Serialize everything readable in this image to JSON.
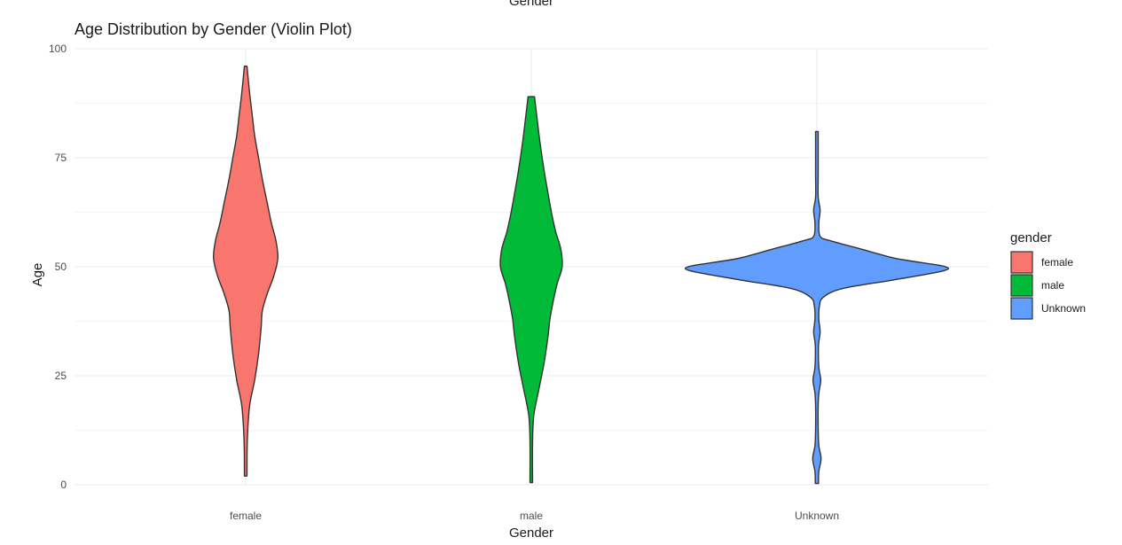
{
  "chart_data": {
    "type": "violin",
    "title": "Age Distribution by Gender (Violin Plot)",
    "xlabel": "Gender",
    "ylabel": "Age",
    "top_clipped_label": "Gender",
    "ylim": [
      0,
      100
    ],
    "yticks": [
      0,
      25,
      50,
      75,
      100
    ],
    "grid": true,
    "legend_title": "gender",
    "legend_position": "right",
    "categories": [
      "female",
      "male",
      "Unknown"
    ],
    "colors": [
      "#F8766D",
      "#00BA38",
      "#619CFF"
    ],
    "series": [
      {
        "name": "female",
        "min": 2,
        "max": 96,
        "profile": [
          [
            2,
            0.02
          ],
          [
            10,
            0.025
          ],
          [
            18,
            0.06
          ],
          [
            24,
            0.14
          ],
          [
            30,
            0.2
          ],
          [
            36,
            0.24
          ],
          [
            40,
            0.26
          ],
          [
            44,
            0.34
          ],
          [
            48,
            0.44
          ],
          [
            52,
            0.5
          ],
          [
            56,
            0.47
          ],
          [
            60,
            0.4
          ],
          [
            65,
            0.33
          ],
          [
            70,
            0.26
          ],
          [
            75,
            0.2
          ],
          [
            80,
            0.14
          ],
          [
            85,
            0.1
          ],
          [
            90,
            0.06
          ],
          [
            96,
            0.02
          ]
        ]
      },
      {
        "name": "male",
        "min": 0.5,
        "max": 89,
        "profile": [
          [
            0.5,
            0.02
          ],
          [
            10,
            0.02
          ],
          [
            16,
            0.04
          ],
          [
            22,
            0.12
          ],
          [
            28,
            0.2
          ],
          [
            34,
            0.26
          ],
          [
            38,
            0.29
          ],
          [
            42,
            0.34
          ],
          [
            46,
            0.4
          ],
          [
            50,
            0.48
          ],
          [
            54,
            0.46
          ],
          [
            58,
            0.38
          ],
          [
            62,
            0.32
          ],
          [
            66,
            0.27
          ],
          [
            72,
            0.2
          ],
          [
            78,
            0.14
          ],
          [
            84,
            0.09
          ],
          [
            89,
            0.05
          ]
        ]
      },
      {
        "name": "Unknown",
        "min": 0.3,
        "max": 81,
        "profile": [
          [
            0.3,
            0.025
          ],
          [
            3,
            0.03
          ],
          [
            6,
            0.065
          ],
          [
            9,
            0.03
          ],
          [
            13,
            0.02
          ],
          [
            18,
            0.02
          ],
          [
            21,
            0.03
          ],
          [
            24,
            0.06
          ],
          [
            27,
            0.03
          ],
          [
            32,
            0.025
          ],
          [
            35,
            0.05
          ],
          [
            38,
            0.03
          ],
          [
            41,
            0.04
          ],
          [
            43,
            0.1
          ],
          [
            45,
            0.4
          ],
          [
            47,
            1.2
          ],
          [
            49,
            1.95
          ],
          [
            50,
            2.0
          ],
          [
            51,
            1.6
          ],
          [
            52,
            1.2
          ],
          [
            54,
            0.7
          ],
          [
            56,
            0.2
          ],
          [
            57,
            0.05
          ],
          [
            60,
            0.03
          ],
          [
            63,
            0.05
          ],
          [
            66,
            0.02
          ],
          [
            71,
            0.02
          ],
          [
            75,
            0.02
          ],
          [
            78,
            0.02
          ],
          [
            81,
            0.02
          ]
        ]
      }
    ]
  }
}
